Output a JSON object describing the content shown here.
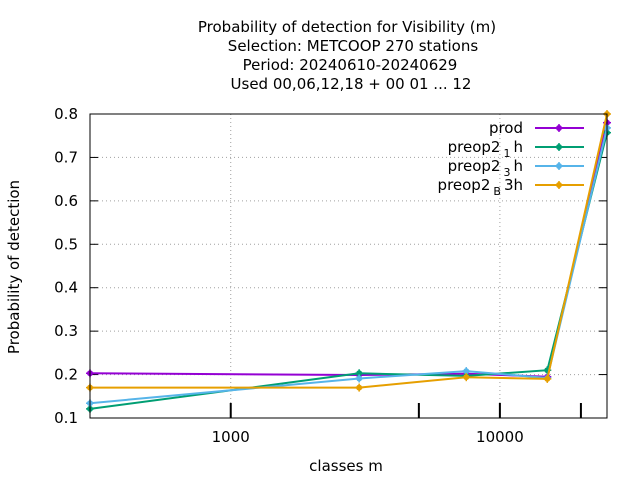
{
  "chart_data": {
    "type": "line",
    "title_lines": [
      "Probability of detection  for Visibility (m)",
      "Selection: METCOOP    270 stations",
      "Period: 20240610-20240629",
      "Used  00,06,12,18 + 00 01 ... 12"
    ],
    "xlabel": "classes m",
    "ylabel": "Probability of detection",
    "xscale": "log",
    "xlim": [
      300,
      25000
    ],
    "ylim": [
      0.1,
      0.8
    ],
    "x_ticks": [
      {
        "value": 1000,
        "label": "1000"
      },
      {
        "value": 10000,
        "label": "10000"
      }
    ],
    "x_minor_ticks": [
      5000,
      20000
    ],
    "y_ticks": [
      {
        "value": 0.1,
        "label": "0.1"
      },
      {
        "value": 0.2,
        "label": "0.2"
      },
      {
        "value": 0.3,
        "label": "0.3"
      },
      {
        "value": 0.4,
        "label": "0.4"
      },
      {
        "value": 0.5,
        "label": "0.5"
      },
      {
        "value": 0.6,
        "label": "0.6"
      },
      {
        "value": 0.7,
        "label": "0.7"
      },
      {
        "value": 0.8,
        "label": "0.8"
      }
    ],
    "grid": true,
    "legend_position": "top-right",
    "x": [
      300,
      3000,
      7500,
      15000,
      25000
    ],
    "series": [
      {
        "name": "prod",
        "legend_main": "prod",
        "legend_sub": "",
        "legend_tail": "",
        "color": "#9400d3",
        "values": [
          0.203,
          0.199,
          0.202,
          0.195,
          0.78
        ]
      },
      {
        "name": "preop2_1h",
        "legend_main": "preop2",
        "legend_sub": "1",
        "legend_tail": "h",
        "color": "#009e73",
        "values": [
          0.121,
          0.203,
          0.197,
          0.21,
          0.757
        ]
      },
      {
        "name": "preop2_3h",
        "legend_main": "preop2",
        "legend_sub": "3",
        "legend_tail": "h",
        "color": "#56b4e9",
        "values": [
          0.134,
          0.191,
          0.208,
          0.192,
          0.768
        ]
      },
      {
        "name": "preop2_B3h",
        "legend_main": "preop2",
        "legend_sub": "B",
        "legend_tail": "3h",
        "color": "#e69f00",
        "values": [
          0.17,
          0.17,
          0.194,
          0.19,
          0.8
        ]
      }
    ]
  }
}
